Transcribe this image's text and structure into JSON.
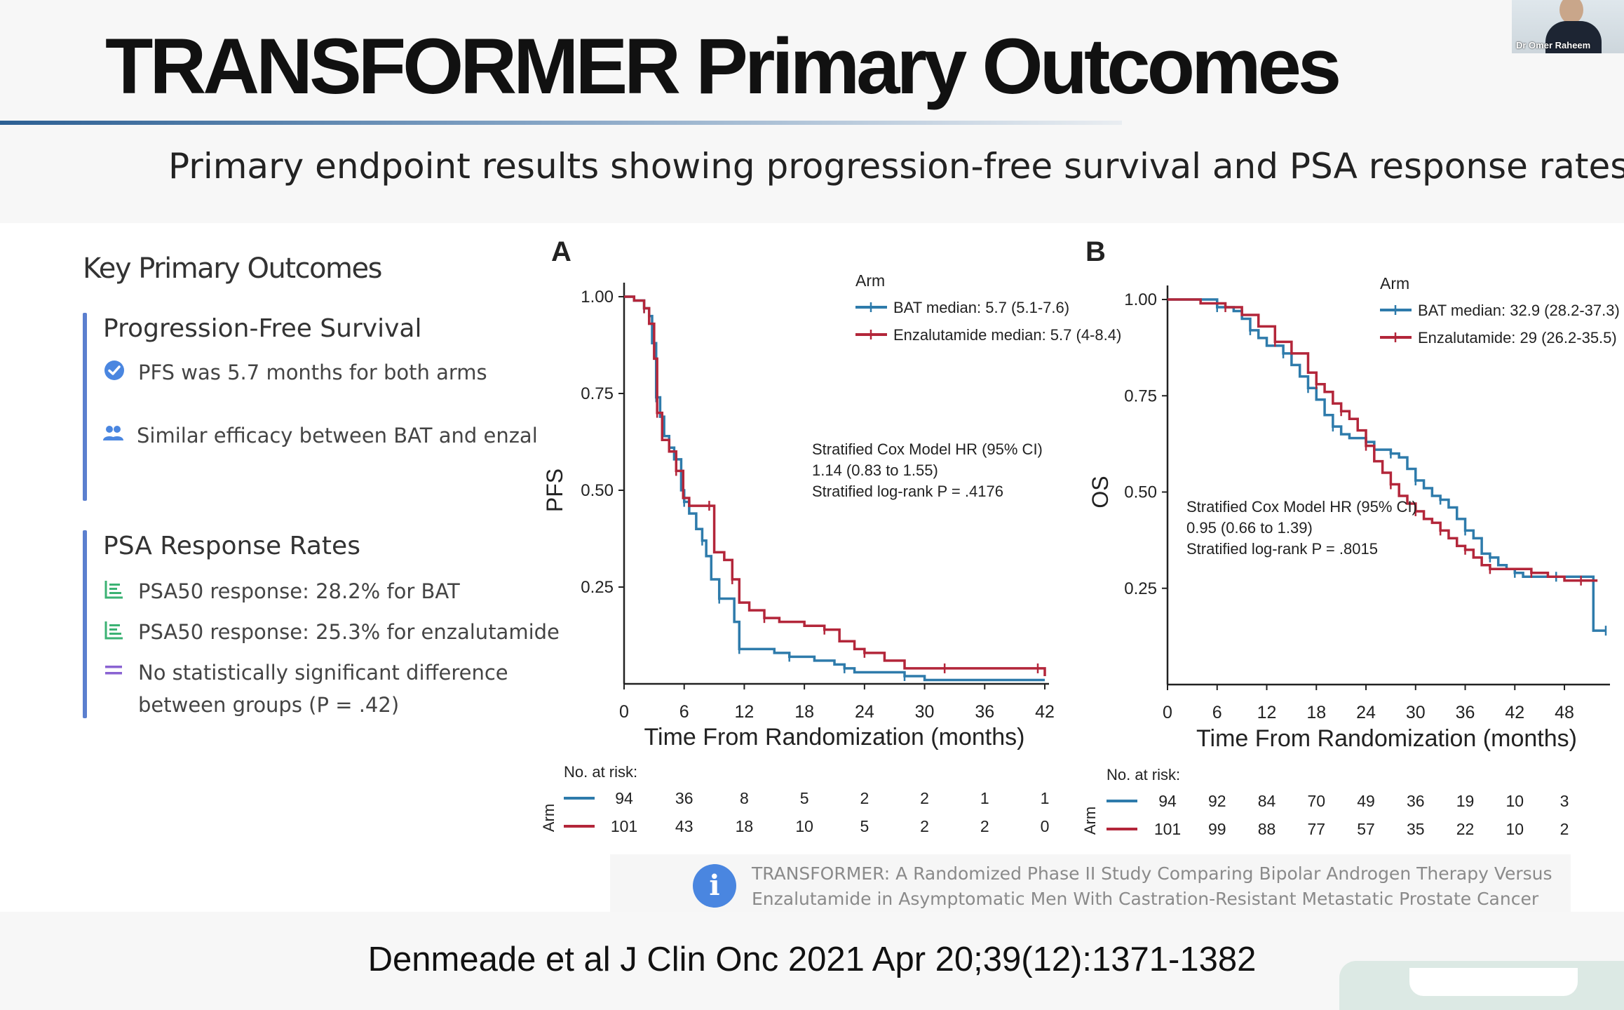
{
  "slide": {
    "title": "TRANSFORMER Primary Outcomes",
    "subtitle": "Primary endpoint results showing progression-free survival and PSA response rates",
    "webcam_name": "Dr Omer Raheem"
  },
  "key_outcomes": {
    "heading": "Key Primary Outcomes",
    "pfs_section": {
      "title": "Progression-Free Survival",
      "items": [
        {
          "icon": "check-circle-icon",
          "text": "PFS was 5.7 months for both arms"
        },
        {
          "icon": "users-icon",
          "text": "Similar efficacy between BAT and enzalutamide"
        }
      ]
    },
    "psa_section": {
      "title": "PSA Response Rates",
      "items": [
        {
          "icon": "bar-chart-icon",
          "text": "PSA50 response: 28.2% for BAT"
        },
        {
          "icon": "bar-chart-icon",
          "text": "PSA50 response: 25.3% for enzalutamide"
        },
        {
          "icon": "equals-icon",
          "line1": "No statistically significant difference",
          "line2": "between groups (P = .42)"
        }
      ]
    }
  },
  "colors": {
    "bat": "#2e7bab",
    "enzalutamide": "#b3263a",
    "accent_bar": "#5b7fcf",
    "green_icon": "#3bb273",
    "purple_icon": "#8a63d2"
  },
  "chart_data": [
    {
      "type": "line",
      "panel_label": "A",
      "xlabel": "Time From Randomization (months)",
      "ylabel": "PFS",
      "xlim": [
        0,
        42
      ],
      "ylim": [
        0,
        1
      ],
      "xticks": [
        0,
        6,
        12,
        18,
        24,
        30,
        36,
        42
      ],
      "yticks": [
        "0.25",
        "0.50",
        "0.75",
        "1.00"
      ],
      "legend_title": "Arm",
      "legend_position": "top-right",
      "series": [
        {
          "name": "BAT median: 5.7 (5.1-7.6)",
          "color": "#2e7bab",
          "x": [
            0,
            1,
            2,
            2.5,
            2.8,
            3.2,
            3.6,
            4.0,
            4.5,
            5.0,
            5.7,
            6.0,
            6.5,
            7.2,
            7.8,
            8.2,
            8.7,
            9.5,
            10.5,
            11.0,
            11.5,
            12.5,
            15,
            16.5,
            19,
            21,
            22,
            23,
            26,
            28,
            30,
            42
          ],
          "y": [
            1.0,
            0.99,
            0.97,
            0.95,
            0.88,
            0.74,
            0.69,
            0.64,
            0.61,
            0.58,
            0.5,
            0.47,
            0.44,
            0.4,
            0.37,
            0.33,
            0.27,
            0.22,
            0.22,
            0.16,
            0.09,
            0.09,
            0.08,
            0.07,
            0.06,
            0.05,
            0.04,
            0.03,
            0.03,
            0.02,
            0.01,
            0.01
          ]
        },
        {
          "name": "Enzalutamide median: 5.7 (4-8.4)",
          "color": "#b3263a",
          "x": [
            0,
            1,
            2,
            2.5,
            3.0,
            3.3,
            3.8,
            4.5,
            5.2,
            5.9,
            6.5,
            8.5,
            9.0,
            10.0,
            10.8,
            11.5,
            12.5,
            14,
            15.5,
            18,
            20,
            21.5,
            23,
            24,
            26,
            28,
            32,
            36,
            38,
            41.3,
            42
          ],
          "y": [
            1.0,
            0.99,
            0.97,
            0.93,
            0.84,
            0.7,
            0.63,
            0.6,
            0.55,
            0.48,
            0.46,
            0.46,
            0.34,
            0.32,
            0.27,
            0.21,
            0.19,
            0.17,
            0.16,
            0.15,
            0.14,
            0.11,
            0.09,
            0.08,
            0.06,
            0.04,
            0.04,
            0.04,
            0.04,
            0.04,
            0.02
          ]
        }
      ],
      "annotation": [
        "Stratified Cox Model HR (95% CI)",
        "1.14 (0.83 to 1.55)",
        "Stratified log-rank  P = .4176"
      ],
      "risk_table": {
        "title": "No. at risk:",
        "row_label": "Arm",
        "times": [
          0,
          6,
          12,
          18,
          24,
          30,
          36,
          42
        ],
        "bat": [
          94,
          36,
          8,
          5,
          2,
          2,
          1,
          1
        ],
        "enzalutamide": [
          101,
          43,
          18,
          10,
          5,
          2,
          2,
          0
        ]
      }
    },
    {
      "type": "line",
      "panel_label": "B",
      "xlabel": "Time From Randomization (months)",
      "ylabel": "OS",
      "xlim": [
        0,
        53
      ],
      "ylim": [
        0,
        1
      ],
      "xticks": [
        0,
        6,
        12,
        18,
        24,
        30,
        36,
        42,
        48
      ],
      "yticks": [
        "0.25",
        "0.50",
        "0.75",
        "1.00"
      ],
      "legend_title": "Arm",
      "legend_position": "top-right",
      "series": [
        {
          "name": "BAT median: 32.9 (28.2-37.3)",
          "color": "#2e7bab",
          "x": [
            0,
            3,
            6,
            8,
            9,
            10,
            11,
            12,
            14,
            15,
            16,
            17,
            18,
            19,
            20,
            21,
            22,
            24,
            25,
            26,
            27,
            28,
            29,
            30,
            31,
            32,
            33,
            34,
            35,
            36,
            37,
            38,
            39,
            40,
            41,
            42,
            43,
            45,
            47,
            49,
            51.5,
            53
          ],
          "y": [
            1.0,
            1.0,
            0.98,
            0.97,
            0.95,
            0.92,
            0.9,
            0.88,
            0.86,
            0.83,
            0.8,
            0.77,
            0.74,
            0.7,
            0.67,
            0.65,
            0.64,
            0.63,
            0.61,
            0.61,
            0.6,
            0.59,
            0.56,
            0.53,
            0.51,
            0.49,
            0.48,
            0.46,
            0.43,
            0.4,
            0.38,
            0.34,
            0.33,
            0.31,
            0.3,
            0.29,
            0.28,
            0.28,
            0.28,
            0.28,
            0.14,
            0.14
          ]
        },
        {
          "name": "Enzalutamide: 29 (26.2-35.5)",
          "color": "#b3263a",
          "x": [
            0,
            4,
            7,
            9,
            11,
            13,
            15,
            17,
            18,
            19,
            20,
            21,
            22,
            23,
            24,
            25,
            26,
            27,
            28,
            29,
            30,
            31,
            32,
            33,
            34,
            35,
            36,
            37,
            38,
            39,
            40,
            42,
            44,
            46,
            48,
            50,
            52
          ],
          "y": [
            1.0,
            0.99,
            0.98,
            0.96,
            0.93,
            0.89,
            0.86,
            0.81,
            0.78,
            0.76,
            0.73,
            0.71,
            0.69,
            0.66,
            0.62,
            0.58,
            0.55,
            0.52,
            0.49,
            0.47,
            0.45,
            0.43,
            0.42,
            0.4,
            0.38,
            0.36,
            0.35,
            0.33,
            0.31,
            0.3,
            0.3,
            0.3,
            0.29,
            0.28,
            0.27,
            0.27,
            0.27
          ]
        }
      ],
      "annotation": [
        "Stratified Cox Model HR (95% CI)",
        "0.95 (0.66 to 1.39)",
        "Stratified log-rank  P = .8015"
      ],
      "risk_table": {
        "title": "No. at risk:",
        "row_label": "Arm",
        "times": [
          0,
          6,
          12,
          18,
          24,
          30,
          36,
          42,
          48
        ],
        "bat": [
          94,
          92,
          84,
          70,
          49,
          36,
          19,
          10,
          3
        ],
        "enzalutamide": [
          101,
          99,
          88,
          77,
          57,
          35,
          22,
          10,
          2
        ]
      }
    }
  ],
  "reference_note": {
    "line1": "TRANSFORMER: A Randomized Phase II Study Comparing Bipolar Androgen Therapy Versus",
    "line2": "Enzalutamide in Asymptomatic Men With Castration-Resistant Metastatic Prostate Cancer"
  },
  "citation": "Denmeade et al J Clin Onc 2021 Apr 20;39(12):1371-1382"
}
